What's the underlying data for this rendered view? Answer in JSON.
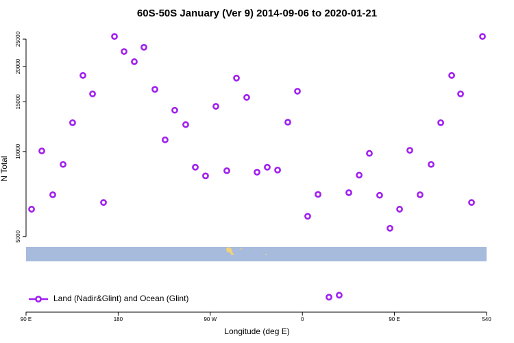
{
  "chart_data": {
    "type": "scatter",
    "title": "60S-50S January (Ver 9)   2014-09-06 to 2020-01-21",
    "x_label": "Longitude (deg E)",
    "y_label": "N Total",
    "xlim": [
      90,
      540
    ],
    "xticks": [
      {
        "value": 90,
        "label": "90 E"
      },
      180,
      {
        "value": 270,
        "label": "90 W"
      },
      {
        "value": 360,
        "label": "0"
      },
      {
        "value": 450,
        "label": "90 E"
      },
      540
    ],
    "ylim": [
      2700,
      27500
    ],
    "log_y": true,
    "yticks": [
      5000,
      10000,
      15000,
      20000,
      25000
    ],
    "legend": "bottom-left",
    "series": [
      {
        "name": "Land (Nadir&Glint) and Ocean (Glint)",
        "color": "#a020f0",
        "x": [
          95.4,
          105.4,
          116.1,
          126.2,
          135.5,
          145.6,
          155,
          165.7,
          176.4,
          185.8,
          195.8,
          205.2,
          215.9,
          225.9,
          235.3,
          246,
          255.4,
          265.4,
          275.5,
          286.2,
          295.6,
          305.6,
          315.7,
          325.7,
          335.8,
          345.8,
          355.2,
          365.2,
          375.3,
          386,
          396,
          405.4,
          415.5,
          425.5,
          435.5,
          445.6,
          455,
          465,
          475,
          485.8,
          495.2,
          505.9,
          514.6,
          525.3,
          536
        ],
        "values": [
          6250,
          10050,
          7030,
          9000,
          12650,
          18600,
          16000,
          6600,
          25550,
          22600,
          20800,
          23400,
          16600,
          11000,
          14000,
          12450,
          8800,
          8200,
          14450,
          8550,
          18200,
          15550,
          8450,
          8800,
          8600,
          12700,
          16350,
          5900,
          7050,
          3050,
          3100,
          7150,
          8250,
          9850,
          7000,
          5350,
          6250,
          10100,
          7030,
          9000,
          12650,
          18600,
          16000,
          6600,
          25550
        ]
      }
    ]
  }
}
